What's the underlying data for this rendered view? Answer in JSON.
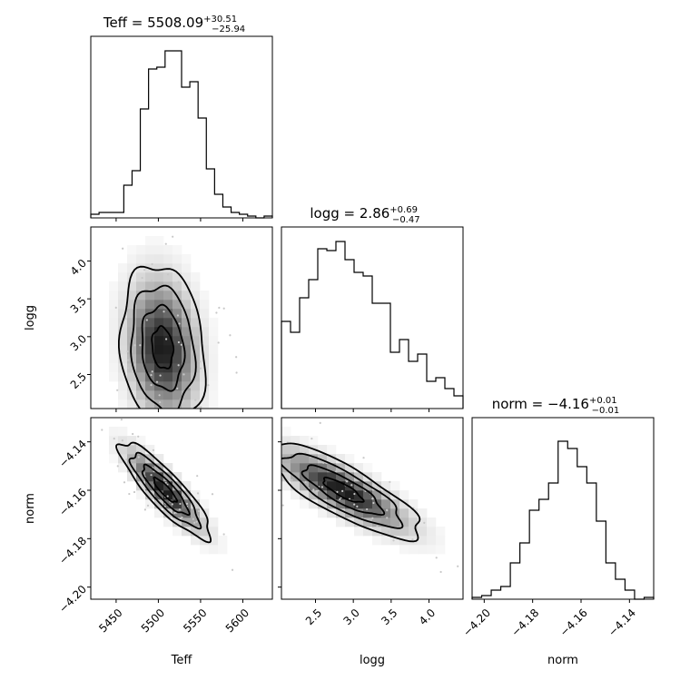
{
  "chart_data": {
    "type": "corner",
    "parameters": [
      {
        "key": "teff",
        "label": "Teff",
        "title": {
          "prefix": "Teff = 5508.09",
          "upper": "+30.51",
          "lower": "−25.94"
        },
        "range": [
          5420,
          5635
        ],
        "ticks": [
          {
            "v": 5450,
            "t": "5450"
          },
          {
            "v": 5500,
            "t": "5500"
          },
          {
            "v": 5550,
            "t": "5550"
          },
          {
            "v": 5600,
            "t": "5600"
          }
        ],
        "hist": [
          0.02,
          0.03,
          0.03,
          0.03,
          0.18,
          0.26,
          0.6,
          0.82,
          0.83,
          0.92,
          0.92,
          0.72,
          0.75,
          0.55,
          0.27,
          0.13,
          0.06,
          0.03,
          0.02,
          0.01,
          0.0,
          0.01
        ]
      },
      {
        "key": "logg",
        "label": "logg",
        "title": {
          "prefix": "logg = 2.86",
          "upper": "+0.69",
          "lower": "−0.47"
        },
        "range": [
          2.05,
          4.45
        ],
        "ticks": [
          {
            "v": 2.5,
            "t": "2.5"
          },
          {
            "v": 3.0,
            "t": "3.0"
          },
          {
            "v": 3.5,
            "t": "3.5"
          },
          {
            "v": 4.0,
            "t": "4.0"
          }
        ],
        "hist": [
          0.48,
          0.42,
          0.61,
          0.71,
          0.88,
          0.87,
          0.92,
          0.82,
          0.75,
          0.73,
          0.58,
          0.58,
          0.31,
          0.38,
          0.26,
          0.3,
          0.15,
          0.17,
          0.11,
          0.07
        ]
      },
      {
        "key": "norm",
        "label": "norm",
        "title": {
          "prefix": "norm = −4.16",
          "upper": "+0.01",
          "lower": "−0.01"
        },
        "range": [
          -4.205,
          -4.13
        ],
        "ticks": [
          {
            "v": -4.2,
            "t": "−4.20"
          },
          {
            "v": -4.18,
            "t": "−4.18"
          },
          {
            "v": -4.16,
            "t": "−4.16"
          },
          {
            "v": -4.14,
            "t": "−4.14"
          }
        ],
        "hist": [
          0.01,
          0.02,
          0.05,
          0.07,
          0.2,
          0.31,
          0.49,
          0.55,
          0.64,
          0.87,
          0.83,
          0.73,
          0.64,
          0.43,
          0.2,
          0.11,
          0.05,
          0.0,
          0.01
        ]
      }
    ],
    "pairs": [
      {
        "x": "teff",
        "y": "logg",
        "center": [
          5505,
          2.85
        ],
        "sd": [
          25,
          0.55
        ],
        "rho": -0.15
      },
      {
        "x": "teff",
        "y": "norm",
        "center": [
          5508,
          -4.16
        ],
        "sd": [
          27,
          0.01
        ],
        "rho": -0.87
      },
      {
        "x": "logg",
        "y": "norm",
        "center": [
          2.86,
          -4.16
        ],
        "sd": [
          0.52,
          0.01
        ],
        "rho": -0.82
      }
    ],
    "contour_levels": [
      0.5,
      1.0,
      1.5,
      2.0
    ]
  }
}
